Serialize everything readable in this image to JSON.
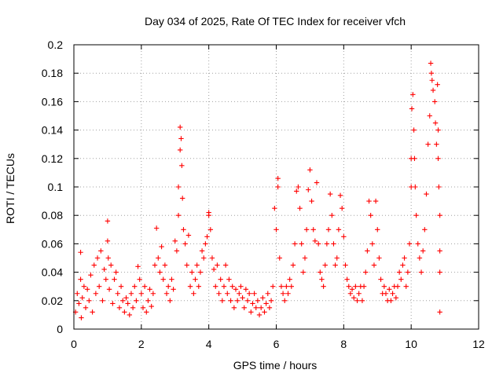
{
  "chart_data": {
    "type": "scatter",
    "title": "Day 034 of 2025, Rate Of TEC Index for receiver vfch",
    "xlabel": "GPS time / hours",
    "ylabel": "ROTI / TECUs",
    "xlim": [
      0,
      12
    ],
    "ylim": [
      0,
      0.2
    ],
    "xticks": [
      0,
      2,
      4,
      6,
      8,
      10,
      12
    ],
    "yticks": [
      0,
      0.02,
      0.04,
      0.06,
      0.08,
      0.1,
      0.12,
      0.14,
      0.16,
      0.18,
      0.2
    ],
    "xtick_labels": [
      "0",
      "2",
      "4",
      "6",
      "8",
      "10",
      "12"
    ],
    "ytick_labels": [
      "0",
      "0.02",
      "0.04",
      "0.06",
      "0.08",
      "0.1",
      "0.12",
      "0.14",
      "0.16",
      "0.18",
      "0.2"
    ],
    "grid": true,
    "marker": "+",
    "color": "#ff0000",
    "series": [
      {
        "name": "ROTI",
        "points": [
          [
            0.05,
            0.012
          ],
          [
            0.1,
            0.025
          ],
          [
            0.15,
            0.018
          ],
          [
            0.2,
            0.035
          ],
          [
            0.2,
            0.054
          ],
          [
            0.22,
            0.008
          ],
          [
            0.25,
            0.022
          ],
          [
            0.3,
            0.03
          ],
          [
            0.35,
            0.015
          ],
          [
            0.4,
            0.028
          ],
          [
            0.45,
            0.02
          ],
          [
            0.5,
            0.038
          ],
          [
            0.55,
            0.012
          ],
          [
            0.6,
            0.045
          ],
          [
            0.65,
            0.025
          ],
          [
            0.7,
            0.05
          ],
          [
            0.75,
            0.03
          ],
          [
            0.8,
            0.055
          ],
          [
            0.85,
            0.02
          ],
          [
            0.9,
            0.042
          ],
          [
            0.95,
            0.035
          ],
          [
            1.0,
            0.076
          ],
          [
            1.0,
            0.062
          ],
          [
            1.02,
            0.05
          ],
          [
            1.05,
            0.028
          ],
          [
            1.1,
            0.045
          ],
          [
            1.15,
            0.018
          ],
          [
            1.2,
            0.035
          ],
          [
            1.25,
            0.04
          ],
          [
            1.3,
            0.025
          ],
          [
            1.35,
            0.015
          ],
          [
            1.4,
            0.03
          ],
          [
            1.45,
            0.02
          ],
          [
            1.5,
            0.012
          ],
          [
            1.55,
            0.022
          ],
          [
            1.6,
            0.018
          ],
          [
            1.65,
            0.01
          ],
          [
            1.7,
            0.025
          ],
          [
            1.75,
            0.015
          ],
          [
            1.8,
            0.03
          ],
          [
            1.85,
            0.02
          ],
          [
            1.9,
            0.044
          ],
          [
            1.95,
            0.035
          ],
          [
            2.0,
            0.025
          ],
          [
            2.05,
            0.015
          ],
          [
            2.1,
            0.03
          ],
          [
            2.15,
            0.012
          ],
          [
            2.2,
            0.02
          ],
          [
            2.25,
            0.028
          ],
          [
            2.3,
            0.016
          ],
          [
            2.35,
            0.025
          ],
          [
            2.4,
            0.045
          ],
          [
            2.45,
            0.071
          ],
          [
            2.5,
            0.05
          ],
          [
            2.55,
            0.04
          ],
          [
            2.6,
            0.058
          ],
          [
            2.65,
            0.035
          ],
          [
            2.7,
            0.045
          ],
          [
            2.75,
            0.025
          ],
          [
            2.8,
            0.03
          ],
          [
            2.85,
            0.02
          ],
          [
            2.9,
            0.035
          ],
          [
            2.95,
            0.028
          ],
          [
            3.0,
            0.062
          ],
          [
            3.05,
            0.055
          ],
          [
            3.1,
            0.08
          ],
          [
            3.1,
            0.1
          ],
          [
            3.15,
            0.126
          ],
          [
            3.15,
            0.142
          ],
          [
            3.18,
            0.134
          ],
          [
            3.2,
            0.115
          ],
          [
            3.22,
            0.092
          ],
          [
            3.25,
            0.07
          ],
          [
            3.3,
            0.06
          ],
          [
            3.35,
            0.045
          ],
          [
            3.4,
            0.066
          ],
          [
            3.45,
            0.03
          ],
          [
            3.5,
            0.04
          ],
          [
            3.55,
            0.025
          ],
          [
            3.6,
            0.035
          ],
          [
            3.65,
            0.045
          ],
          [
            3.7,
            0.03
          ],
          [
            3.75,
            0.04
          ],
          [
            3.8,
            0.055
          ],
          [
            3.85,
            0.05
          ],
          [
            3.9,
            0.06
          ],
          [
            3.95,
            0.065
          ],
          [
            4.0,
            0.08
          ],
          [
            4.0,
            0.082
          ],
          [
            4.05,
            0.07
          ],
          [
            4.1,
            0.05
          ],
          [
            4.15,
            0.042
          ],
          [
            4.2,
            0.03
          ],
          [
            4.25,
            0.045
          ],
          [
            4.3,
            0.025
          ],
          [
            4.35,
            0.035
          ],
          [
            4.4,
            0.02
          ],
          [
            4.45,
            0.03
          ],
          [
            4.5,
            0.045
          ],
          [
            4.55,
            0.025
          ],
          [
            4.6,
            0.035
          ],
          [
            4.65,
            0.02
          ],
          [
            4.7,
            0.03
          ],
          [
            4.75,
            0.015
          ],
          [
            4.8,
            0.028
          ],
          [
            4.85,
            0.02
          ],
          [
            4.9,
            0.025
          ],
          [
            4.95,
            0.03
          ],
          [
            5.0,
            0.022
          ],
          [
            5.05,
            0.015
          ],
          [
            5.1,
            0.028
          ],
          [
            5.15,
            0.02
          ],
          [
            5.2,
            0.025
          ],
          [
            5.25,
            0.012
          ],
          [
            5.3,
            0.018
          ],
          [
            5.35,
            0.025
          ],
          [
            5.4,
            0.015
          ],
          [
            5.45,
            0.02
          ],
          [
            5.5,
            0.01
          ],
          [
            5.55,
            0.015
          ],
          [
            5.6,
            0.022
          ],
          [
            5.65,
            0.012
          ],
          [
            5.7,
            0.018
          ],
          [
            5.75,
            0.025
          ],
          [
            5.8,
            0.015
          ],
          [
            5.85,
            0.02
          ],
          [
            5.9,
            0.03
          ],
          [
            5.95,
            0.085
          ],
          [
            6.0,
            0.07
          ],
          [
            6.05,
            0.106
          ],
          [
            6.05,
            0.1
          ],
          [
            6.1,
            0.05
          ],
          [
            6.15,
            0.03
          ],
          [
            6.2,
            0.025
          ],
          [
            6.25,
            0.02
          ],
          [
            6.3,
            0.03
          ],
          [
            6.35,
            0.025
          ],
          [
            6.4,
            0.035
          ],
          [
            6.45,
            0.03
          ],
          [
            6.5,
            0.045
          ],
          [
            6.55,
            0.06
          ],
          [
            6.6,
            0.097
          ],
          [
            6.65,
            0.1
          ],
          [
            6.7,
            0.085
          ],
          [
            6.75,
            0.06
          ],
          [
            6.8,
            0.04
          ],
          [
            6.85,
            0.05
          ],
          [
            6.9,
            0.07
          ],
          [
            6.95,
            0.098
          ],
          [
            7.0,
            0.112
          ],
          [
            7.05,
            0.09
          ],
          [
            7.1,
            0.07
          ],
          [
            7.15,
            0.062
          ],
          [
            7.2,
            0.103
          ],
          [
            7.25,
            0.06
          ],
          [
            7.3,
            0.04
          ],
          [
            7.35,
            0.035
          ],
          [
            7.4,
            0.03
          ],
          [
            7.45,
            0.045
          ],
          [
            7.5,
            0.06
          ],
          [
            7.55,
            0.07
          ],
          [
            7.6,
            0.095
          ],
          [
            7.65,
            0.08
          ],
          [
            7.7,
            0.06
          ],
          [
            7.75,
            0.045
          ],
          [
            7.8,
            0.05
          ],
          [
            7.85,
            0.07
          ],
          [
            7.9,
            0.094
          ],
          [
            7.95,
            0.085
          ],
          [
            8.0,
            0.065
          ],
          [
            8.05,
            0.045
          ],
          [
            8.1,
            0.035
          ],
          [
            8.15,
            0.03
          ],
          [
            8.2,
            0.025
          ],
          [
            8.25,
            0.028
          ],
          [
            8.3,
            0.022
          ],
          [
            8.35,
            0.03
          ],
          [
            8.4,
            0.02
          ],
          [
            8.45,
            0.025
          ],
          [
            8.5,
            0.03
          ],
          [
            8.55,
            0.02
          ],
          [
            8.6,
            0.03
          ],
          [
            8.65,
            0.04
          ],
          [
            8.7,
            0.055
          ],
          [
            8.75,
            0.09
          ],
          [
            8.8,
            0.08
          ],
          [
            8.85,
            0.06
          ],
          [
            8.9,
            0.045
          ],
          [
            8.95,
            0.09
          ],
          [
            9.0,
            0.07
          ],
          [
            9.05,
            0.05
          ],
          [
            9.1,
            0.035
          ],
          [
            9.15,
            0.025
          ],
          [
            9.2,
            0.03
          ],
          [
            9.25,
            0.025
          ],
          [
            9.3,
            0.02
          ],
          [
            9.35,
            0.028
          ],
          [
            9.4,
            0.02
          ],
          [
            9.45,
            0.025
          ],
          [
            9.5,
            0.03
          ],
          [
            9.55,
            0.022
          ],
          [
            9.6,
            0.03
          ],
          [
            9.65,
            0.04
          ],
          [
            9.7,
            0.035
          ],
          [
            9.75,
            0.045
          ],
          [
            9.8,
            0.05
          ],
          [
            9.85,
            0.03
          ],
          [
            9.9,
            0.04
          ],
          [
            9.95,
            0.06
          ],
          [
            10.0,
            0.1
          ],
          [
            10.0,
            0.12
          ],
          [
            10.02,
            0.155
          ],
          [
            10.05,
            0.165
          ],
          [
            10.08,
            0.14
          ],
          [
            10.1,
            0.12
          ],
          [
            10.12,
            0.1
          ],
          [
            10.15,
            0.08
          ],
          [
            10.2,
            0.06
          ],
          [
            10.25,
            0.05
          ],
          [
            10.3,
            0.04
          ],
          [
            10.35,
            0.055
          ],
          [
            10.4,
            0.07
          ],
          [
            10.45,
            0.095
          ],
          [
            10.5,
            0.13
          ],
          [
            10.55,
            0.15
          ],
          [
            10.58,
            0.187
          ],
          [
            10.6,
            0.18
          ],
          [
            10.62,
            0.175
          ],
          [
            10.65,
            0.168
          ],
          [
            10.7,
            0.16
          ],
          [
            10.72,
            0.145
          ],
          [
            10.75,
            0.13
          ],
          [
            10.78,
            0.172
          ],
          [
            10.8,
            0.14
          ],
          [
            10.8,
            0.12
          ],
          [
            10.82,
            0.1
          ],
          [
            10.85,
            0.08
          ],
          [
            10.85,
            0.055
          ],
          [
            10.85,
            0.04
          ],
          [
            10.85,
            0.012
          ]
        ]
      }
    ]
  }
}
